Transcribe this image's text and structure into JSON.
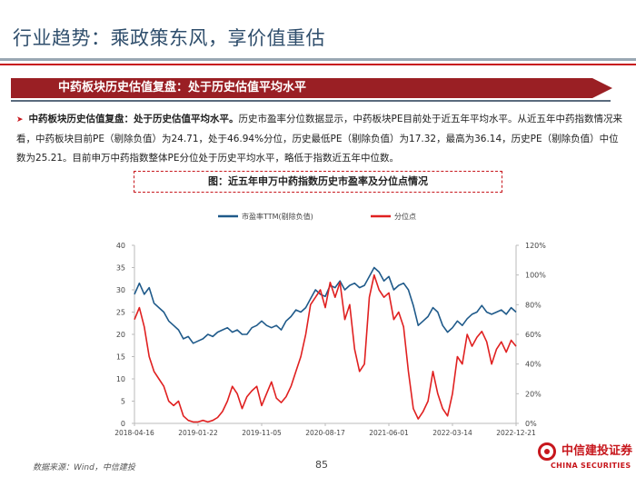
{
  "header": {
    "title": "行业趋势：乘政策东风，享价值重估"
  },
  "section": {
    "banner": "中药板块历史估值复盘：处于历史估值平均水平"
  },
  "summary": {
    "lead": "中药板块历史估值复盘：处于历史估值平均水平。",
    "body": "历史市盈率分位数据显示，中药板块PE目前处于近五年平均水平。从近五年中药指数情况来看，中药板块目前PE（剔除负值）为24.71，处于46.94%分位，历史最低PE（剔除负值）为17.32，最高为36.14，历史PE（剔除负值）中位数为25.21。目前申万中药指数整体PE分位处于历史平均水平，略低于指数近五年中位数。"
  },
  "figure": {
    "caption": "图：近五年申万中药指数历史市盈率及分位点情况"
  },
  "chart_data": {
    "type": "line",
    "x_tick_labels": [
      "2018-04-16",
      "2019-01-22",
      "2019-11-05",
      "2020-08-17",
      "2021-06-01",
      "2022-03-14",
      "2022-12-21"
    ],
    "left_axis": {
      "min": 0,
      "max": 40,
      "ticks": [
        "0",
        "5",
        "10",
        "15",
        "20",
        "25",
        "30",
        "35",
        "40"
      ]
    },
    "right_axis": {
      "min": 0,
      "max": 120,
      "ticks": [
        "0%",
        "20%",
        "40%",
        "60%",
        "80%",
        "100%",
        "120%"
      ]
    },
    "grid": false,
    "legend_position": "top",
    "series": [
      {
        "name": "市盈率TTM(剔除负值)",
        "axis": "left",
        "color": "#1f5a8a",
        "values": [
          29,
          31.5,
          29,
          30.5,
          27,
          26,
          25,
          23,
          22,
          21,
          19,
          19.5,
          18,
          18.5,
          19,
          20,
          19.5,
          20.5,
          21,
          21.5,
          20.5,
          21,
          20,
          20,
          21.5,
          22,
          23,
          22,
          21.5,
          22,
          21,
          23,
          24,
          25.5,
          25,
          26,
          28,
          30,
          29,
          28.5,
          31,
          30.5,
          32,
          30,
          31,
          31.5,
          30.5,
          31,
          33,
          35,
          34,
          32,
          33,
          30,
          31,
          31.5,
          30,
          26.5,
          22,
          23,
          24,
          26,
          25,
          22,
          20.5,
          21.5,
          23,
          22,
          23.5,
          24.5,
          25,
          26.5,
          25,
          24.5,
          25,
          25.5,
          24.5,
          26,
          25
        ]
      },
      {
        "name": "分位点",
        "axis": "right",
        "color": "#e02020",
        "values": [
          70,
          78,
          65,
          45,
          35,
          30,
          25,
          15,
          12,
          15,
          5,
          2,
          1,
          1,
          2,
          1,
          2,
          4,
          8,
          15,
          25,
          20,
          10,
          18,
          22,
          25,
          12,
          20,
          28,
          17,
          14,
          18,
          25,
          35,
          45,
          60,
          80,
          85,
          90,
          78,
          95,
          85,
          95,
          70,
          80,
          50,
          35,
          40,
          85,
          100,
          90,
          85,
          88,
          70,
          75,
          65,
          35,
          10,
          3,
          8,
          15,
          35,
          20,
          10,
          5,
          20,
          45,
          40,
          60,
          52,
          58,
          62,
          55,
          40,
          50,
          55,
          48,
          56,
          52
        ]
      }
    ]
  },
  "footer": {
    "source": "数据来源：Wind，中信建投",
    "page_number": "85",
    "logo_cn": "中信建投证券",
    "logo_en": "CHINA SECURITIES"
  }
}
